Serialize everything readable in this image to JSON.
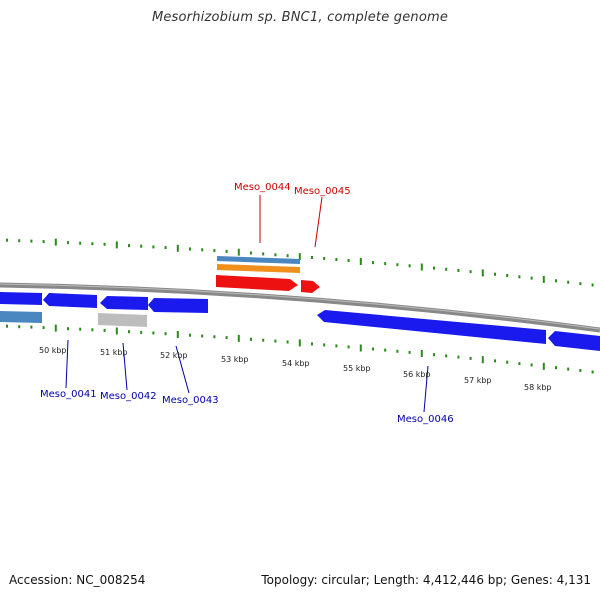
{
  "title": "Mesorhizobium sp. BNC1, complete genome",
  "footer": {
    "accession": "Accession: NC_008254",
    "summary": "Topology: circular; Length: 4,412,446 bp; Genes: 4,131"
  },
  "colors": {
    "forward_cds": "#1a1aee",
    "reverse_cds": "#1a1aee",
    "gene_bar": "#4a86c0",
    "gene_bar_grey": "#bdbdbd",
    "orange_bar": "#f0901c",
    "red_cds": "#ee1111",
    "red_label": "#cc0000",
    "blue_label": "#0000aa",
    "tick": "#2a8a1a",
    "backbone": "#888888"
  },
  "scale_labels": [
    "50 kbp",
    "51 kbp",
    "52 kbp",
    "53 kbp",
    "54 kbp",
    "55 kbp",
    "56 kbp",
    "57 kbp",
    "58 kbp"
  ],
  "gene_labels": {
    "top": [
      "Meso_0044",
      "Meso_0045"
    ],
    "bottom": [
      "Meso_0041",
      "Meso_0042",
      "Meso_0043",
      "Meso_0046"
    ]
  }
}
